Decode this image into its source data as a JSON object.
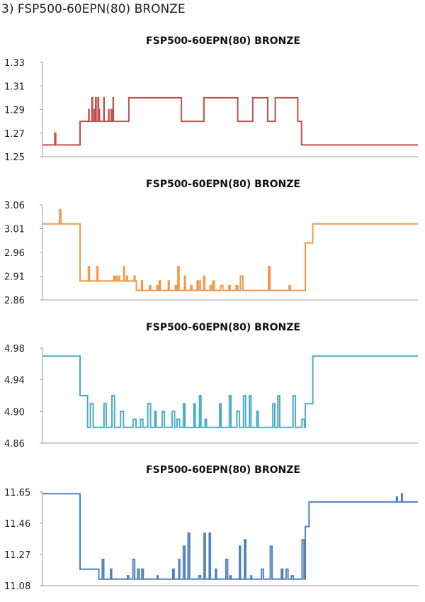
{
  "heading": "3) FSP500-60EPN(80) BRONZE",
  "chart_data": [
    {
      "type": "line",
      "title": "FSP500-60EPN(80) BRONZE",
      "ylim": [
        1.25,
        1.33
      ],
      "yticks": [
        "1.33",
        "1.31",
        "1.29",
        "1.27",
        "1.25"
      ],
      "series": [
        {
          "color": "#c0504d",
          "levels": [
            1.26,
            1.27,
            1.28,
            1.29,
            1.3
          ],
          "segments": [
            [
              0,
              0.1,
              0,
              8,
              0.8,
              1
            ],
            [
              0.1,
              0.12,
              2,
              0,
              0,
              0
            ],
            [
              0.12,
              0.19,
              2,
              14,
              1.0,
              4
            ],
            [
              0.19,
              0.23,
              2,
              3,
              0.4,
              0
            ],
            [
              0.23,
              0.3,
              4,
              10,
              0.8,
              2
            ],
            [
              0.3,
              0.37,
              4,
              3,
              0.5,
              2
            ],
            [
              0.37,
              0.43,
              2,
              5,
              0.6,
              1
            ],
            [
              0.43,
              0.52,
              4,
              5,
              0.6,
              2
            ],
            [
              0.52,
              0.56,
              2,
              3,
              0.5,
              1
            ],
            [
              0.56,
              0.6,
              4,
              4,
              0.6,
              2
            ],
            [
              0.6,
              0.62,
              2,
              0,
              0,
              0
            ],
            [
              0.62,
              0.68,
              4,
              4,
              0.6,
              2
            ],
            [
              0.68,
              0.69,
              2,
              1,
              0.5,
              1
            ],
            [
              0.69,
              0.7,
              0,
              1,
              0.5,
              1
            ],
            [
              0.7,
              1.0,
              0,
              6,
              0.5,
              1
            ]
          ]
        }
      ]
    },
    {
      "type": "line",
      "title": "FSP500-60EPN(80) BRONZE",
      "ylim": [
        2.86,
        3.06
      ],
      "yticks": [
        "3.06",
        "3.01",
        "2.96",
        "2.91",
        "2.86"
      ],
      "series": [
        {
          "color": "#f79646",
          "levels": [
            2.88,
            2.89,
            2.9,
            2.91,
            2.93,
            2.95,
            2.98,
            3.02,
            3.05
          ],
          "segments": [
            [
              0,
              0.07,
              7,
              8,
              0.8,
              8
            ],
            [
              0.07,
              0.1,
              7,
              0,
              0,
              0
            ],
            [
              0.1,
              0.12,
              2,
              0,
              0,
              0
            ],
            [
              0.12,
              0.25,
              2,
              18,
              0.6,
              4
            ],
            [
              0.25,
              0.45,
              0,
              24,
              0.6,
              4
            ],
            [
              0.45,
              0.7,
              0,
              14,
              0.5,
              4
            ],
            [
              0.7,
              0.72,
              6,
              0,
              0,
              0
            ],
            [
              0.72,
              1.0,
              7,
              1,
              0.2,
              6
            ]
          ]
        }
      ]
    },
    {
      "type": "line",
      "title": "FSP500-60EPN(80) BRONZE",
      "ylim": [
        4.86,
        4.98
      ],
      "yticks": [
        "4.98",
        "4.94",
        "4.90",
        "4.86"
      ],
      "series": [
        {
          "color": "#4bacc6",
          "levels": [
            4.88,
            4.89,
            4.9,
            4.91,
            4.92,
            4.95,
            4.97
          ],
          "segments": [
            [
              0,
              0.1,
              6,
              0,
              0,
              0
            ],
            [
              0.1,
              0.12,
              4,
              0,
              0,
              0
            ],
            [
              0.12,
              0.7,
              0,
              30,
              0.9,
              4
            ],
            [
              0.7,
              0.72,
              3,
              0,
              0,
              0
            ],
            [
              0.72,
              1.0,
              6,
              2,
              0.3,
              5
            ]
          ]
        }
      ]
    },
    {
      "type": "line",
      "title": "FSP500-60EPN(80) BRONZE",
      "ylim": [
        11.08,
        11.65
      ],
      "yticks": [
        "11.65",
        "11.46",
        "11.27",
        "11.08"
      ],
      "series": [
        {
          "color": "#4f81bd",
          "levels": [
            11.1,
            11.12,
            11.14,
            11.18,
            11.24,
            11.32,
            11.36,
            11.4,
            11.44,
            11.59,
            11.62,
            11.64
          ],
          "segments": [
            [
              0,
              0.1,
              11,
              0,
              0,
              0
            ],
            [
              0.1,
              0.15,
              3,
              2,
              0.5,
              7
            ],
            [
              0.15,
              0.7,
              1,
              40,
              0.7,
              7
            ],
            [
              0.7,
              0.71,
              8,
              0,
              0,
              0
            ],
            [
              0.71,
              0.92,
              9,
              0,
              0,
              0
            ],
            [
              0.92,
              0.96,
              9,
              4,
              0.5,
              11
            ],
            [
              0.96,
              1.0,
              9,
              0,
              0,
              0
            ]
          ]
        }
      ]
    }
  ]
}
